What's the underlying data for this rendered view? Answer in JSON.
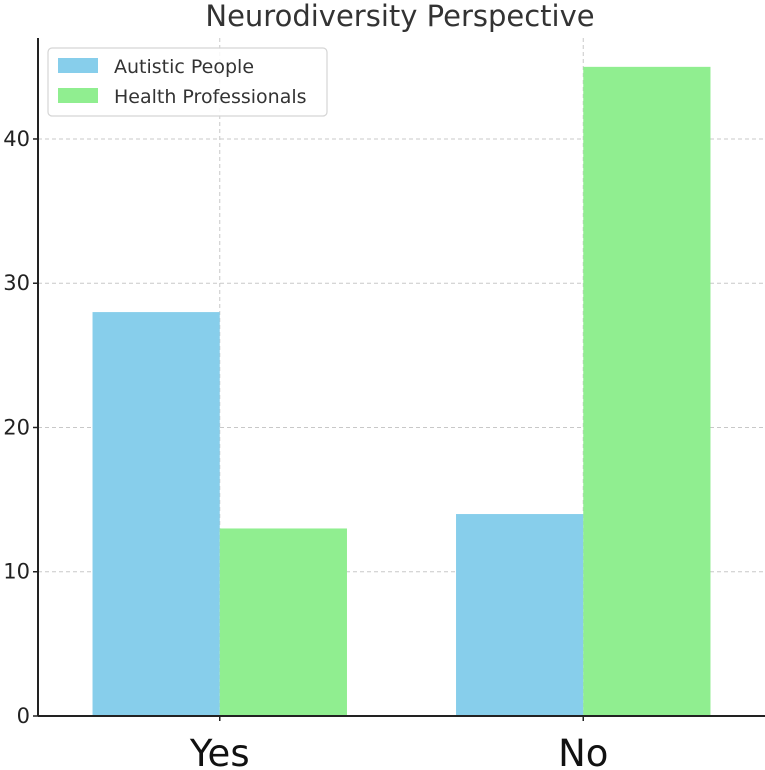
{
  "chart_data": {
    "type": "bar",
    "title": "Neurodiversity Perspective",
    "xlabel": "",
    "ylabel": "",
    "categories": [
      "Yes",
      "No"
    ],
    "series": [
      {
        "name": "Autistic People",
        "values": [
          28,
          14
        ],
        "color": "#87ceeb"
      },
      {
        "name": "Health Professionals",
        "values": [
          13,
          45
        ],
        "color": "#90ee90"
      }
    ],
    "ylim": [
      0,
      47
    ],
    "yticks": [
      0,
      10,
      20,
      30,
      40
    ],
    "grid": true,
    "legend": "upper-left"
  }
}
